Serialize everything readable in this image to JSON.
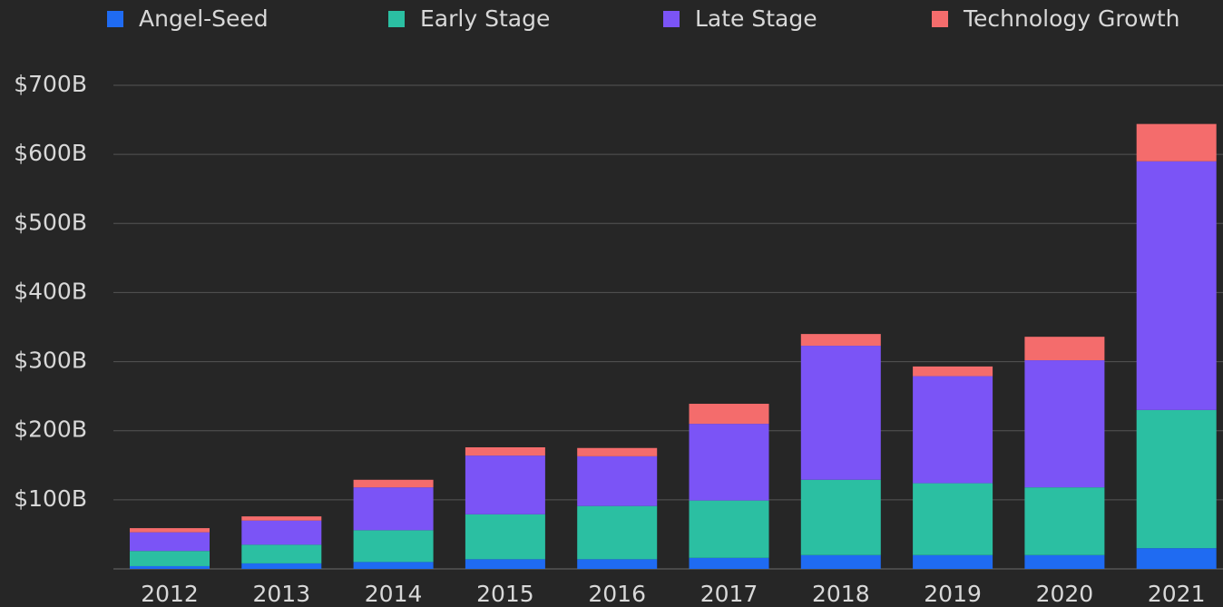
{
  "chart_data": {
    "type": "stacked_bar",
    "categories": [
      "2012",
      "2013",
      "2014",
      "2015",
      "2016",
      "2017",
      "2018",
      "2019",
      "2020",
      "2021"
    ],
    "series": [
      {
        "name": "Angel-Seed",
        "color": "#1f6bf2",
        "values": [
          4,
          8,
          10,
          14,
          14,
          16,
          20,
          20,
          20,
          30
        ]
      },
      {
        "name": "Early Stage",
        "color": "#2bbfa2",
        "values": [
          22,
          27,
          46,
          65,
          77,
          83,
          109,
          104,
          98,
          200
        ]
      },
      {
        "name": "Late Stage",
        "color": "#7b54f6",
        "values": [
          27,
          35,
          62,
          85,
          72,
          111,
          194,
          155,
          184,
          360
        ]
      },
      {
        "name": "Technology Growth",
        "color": "#f46c6c",
        "values": [
          6,
          6,
          11,
          12,
          12,
          29,
          17,
          14,
          34,
          54
        ]
      }
    ],
    "ylim": [
      0,
      700
    ],
    "yticks": [
      {
        "value": 100,
        "label": "$100B"
      },
      {
        "value": 200,
        "label": "$200B"
      },
      {
        "value": 300,
        "label": "$300B"
      },
      {
        "value": 400,
        "label": "$400B"
      },
      {
        "value": 500,
        "label": "$500B"
      },
      {
        "value": 600,
        "label": "$600B"
      },
      {
        "value": 700,
        "label": "$700B"
      }
    ],
    "grid": true,
    "legend": "top"
  }
}
